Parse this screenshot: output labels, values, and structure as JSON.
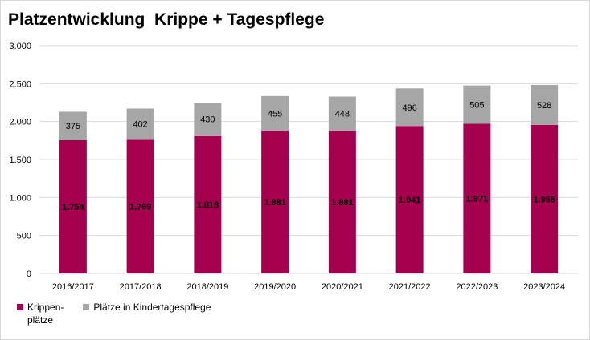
{
  "chart_data": {
    "type": "bar",
    "stacked": true,
    "title": "Platzentwicklung  Krippe + Tagespflege",
    "categories": [
      "2016/2017",
      "2017/2018",
      "2018/2019",
      "2019/2020",
      "2020/2021",
      "2021/2022",
      "2022/2023",
      "2023/2024"
    ],
    "series": [
      {
        "name": "Krippen-\nplätze",
        "color": "#a50050",
        "values": [
          1754,
          1769,
          1818,
          1881,
          1881,
          1941,
          1971,
          1955
        ],
        "labels": [
          "1.754",
          "1.769",
          "1.818",
          "1.881",
          "1.881",
          "1.941",
          "1.971",
          "1.955"
        ]
      },
      {
        "name": "Plätze in Kindertagespflege",
        "color": "#a6a6a6",
        "values": [
          375,
          402,
          430,
          455,
          448,
          496,
          505,
          528
        ],
        "labels": [
          "375",
          "402",
          "430",
          "455",
          "448",
          "496",
          "505",
          "528"
        ]
      }
    ],
    "ylim": [
      0,
      3000
    ],
    "yticks": [
      0,
      500,
      1000,
      1500,
      2000,
      2500,
      3000
    ],
    "ytick_labels": [
      "0",
      "500",
      "1.000",
      "1.500",
      "2.000",
      "2.500",
      "3.000"
    ],
    "grid": true,
    "legend": "bottom-left"
  }
}
